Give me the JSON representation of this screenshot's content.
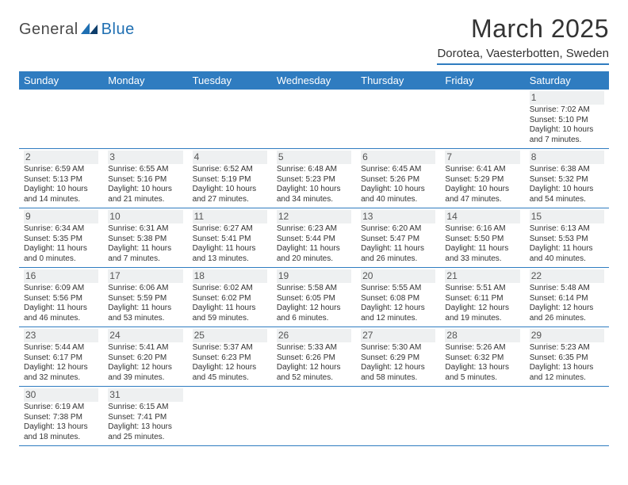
{
  "logo": {
    "part1": "General",
    "part2": "Blue"
  },
  "title": "March 2025",
  "subtitle": "Dorotea, Vaesterbotten, Sweden",
  "colors": {
    "header_bg": "#2f7cc0",
    "header_fg": "#ffffff",
    "border": "#2f7cc0",
    "daynum_bg": "#eef0f1",
    "text": "#333333"
  },
  "weekdays": [
    "Sunday",
    "Monday",
    "Tuesday",
    "Wednesday",
    "Thursday",
    "Friday",
    "Saturday"
  ],
  "cells": [
    {
      "day": "",
      "sunrise": "",
      "sunset": "",
      "daylight": ""
    },
    {
      "day": "",
      "sunrise": "",
      "sunset": "",
      "daylight": ""
    },
    {
      "day": "",
      "sunrise": "",
      "sunset": "",
      "daylight": ""
    },
    {
      "day": "",
      "sunrise": "",
      "sunset": "",
      "daylight": ""
    },
    {
      "day": "",
      "sunrise": "",
      "sunset": "",
      "daylight": ""
    },
    {
      "day": "",
      "sunrise": "",
      "sunset": "",
      "daylight": ""
    },
    {
      "day": "1",
      "sunrise": "Sunrise: 7:02 AM",
      "sunset": "Sunset: 5:10 PM",
      "daylight": "Daylight: 10 hours and 7 minutes."
    },
    {
      "day": "2",
      "sunrise": "Sunrise: 6:59 AM",
      "sunset": "Sunset: 5:13 PM",
      "daylight": "Daylight: 10 hours and 14 minutes."
    },
    {
      "day": "3",
      "sunrise": "Sunrise: 6:55 AM",
      "sunset": "Sunset: 5:16 PM",
      "daylight": "Daylight: 10 hours and 21 minutes."
    },
    {
      "day": "4",
      "sunrise": "Sunrise: 6:52 AM",
      "sunset": "Sunset: 5:19 PM",
      "daylight": "Daylight: 10 hours and 27 minutes."
    },
    {
      "day": "5",
      "sunrise": "Sunrise: 6:48 AM",
      "sunset": "Sunset: 5:23 PM",
      "daylight": "Daylight: 10 hours and 34 minutes."
    },
    {
      "day": "6",
      "sunrise": "Sunrise: 6:45 AM",
      "sunset": "Sunset: 5:26 PM",
      "daylight": "Daylight: 10 hours and 40 minutes."
    },
    {
      "day": "7",
      "sunrise": "Sunrise: 6:41 AM",
      "sunset": "Sunset: 5:29 PM",
      "daylight": "Daylight: 10 hours and 47 minutes."
    },
    {
      "day": "8",
      "sunrise": "Sunrise: 6:38 AM",
      "sunset": "Sunset: 5:32 PM",
      "daylight": "Daylight: 10 hours and 54 minutes."
    },
    {
      "day": "9",
      "sunrise": "Sunrise: 6:34 AM",
      "sunset": "Sunset: 5:35 PM",
      "daylight": "Daylight: 11 hours and 0 minutes."
    },
    {
      "day": "10",
      "sunrise": "Sunrise: 6:31 AM",
      "sunset": "Sunset: 5:38 PM",
      "daylight": "Daylight: 11 hours and 7 minutes."
    },
    {
      "day": "11",
      "sunrise": "Sunrise: 6:27 AM",
      "sunset": "Sunset: 5:41 PM",
      "daylight": "Daylight: 11 hours and 13 minutes."
    },
    {
      "day": "12",
      "sunrise": "Sunrise: 6:23 AM",
      "sunset": "Sunset: 5:44 PM",
      "daylight": "Daylight: 11 hours and 20 minutes."
    },
    {
      "day": "13",
      "sunrise": "Sunrise: 6:20 AM",
      "sunset": "Sunset: 5:47 PM",
      "daylight": "Daylight: 11 hours and 26 minutes."
    },
    {
      "day": "14",
      "sunrise": "Sunrise: 6:16 AM",
      "sunset": "Sunset: 5:50 PM",
      "daylight": "Daylight: 11 hours and 33 minutes."
    },
    {
      "day": "15",
      "sunrise": "Sunrise: 6:13 AM",
      "sunset": "Sunset: 5:53 PM",
      "daylight": "Daylight: 11 hours and 40 minutes."
    },
    {
      "day": "16",
      "sunrise": "Sunrise: 6:09 AM",
      "sunset": "Sunset: 5:56 PM",
      "daylight": "Daylight: 11 hours and 46 minutes."
    },
    {
      "day": "17",
      "sunrise": "Sunrise: 6:06 AM",
      "sunset": "Sunset: 5:59 PM",
      "daylight": "Daylight: 11 hours and 53 minutes."
    },
    {
      "day": "18",
      "sunrise": "Sunrise: 6:02 AM",
      "sunset": "Sunset: 6:02 PM",
      "daylight": "Daylight: 11 hours and 59 minutes."
    },
    {
      "day": "19",
      "sunrise": "Sunrise: 5:58 AM",
      "sunset": "Sunset: 6:05 PM",
      "daylight": "Daylight: 12 hours and 6 minutes."
    },
    {
      "day": "20",
      "sunrise": "Sunrise: 5:55 AM",
      "sunset": "Sunset: 6:08 PM",
      "daylight": "Daylight: 12 hours and 12 minutes."
    },
    {
      "day": "21",
      "sunrise": "Sunrise: 5:51 AM",
      "sunset": "Sunset: 6:11 PM",
      "daylight": "Daylight: 12 hours and 19 minutes."
    },
    {
      "day": "22",
      "sunrise": "Sunrise: 5:48 AM",
      "sunset": "Sunset: 6:14 PM",
      "daylight": "Daylight: 12 hours and 26 minutes."
    },
    {
      "day": "23",
      "sunrise": "Sunrise: 5:44 AM",
      "sunset": "Sunset: 6:17 PM",
      "daylight": "Daylight: 12 hours and 32 minutes."
    },
    {
      "day": "24",
      "sunrise": "Sunrise: 5:41 AM",
      "sunset": "Sunset: 6:20 PM",
      "daylight": "Daylight: 12 hours and 39 minutes."
    },
    {
      "day": "25",
      "sunrise": "Sunrise: 5:37 AM",
      "sunset": "Sunset: 6:23 PM",
      "daylight": "Daylight: 12 hours and 45 minutes."
    },
    {
      "day": "26",
      "sunrise": "Sunrise: 5:33 AM",
      "sunset": "Sunset: 6:26 PM",
      "daylight": "Daylight: 12 hours and 52 minutes."
    },
    {
      "day": "27",
      "sunrise": "Sunrise: 5:30 AM",
      "sunset": "Sunset: 6:29 PM",
      "daylight": "Daylight: 12 hours and 58 minutes."
    },
    {
      "day": "28",
      "sunrise": "Sunrise: 5:26 AM",
      "sunset": "Sunset: 6:32 PM",
      "daylight": "Daylight: 13 hours and 5 minutes."
    },
    {
      "day": "29",
      "sunrise": "Sunrise: 5:23 AM",
      "sunset": "Sunset: 6:35 PM",
      "daylight": "Daylight: 13 hours and 12 minutes."
    },
    {
      "day": "30",
      "sunrise": "Sunrise: 6:19 AM",
      "sunset": "Sunset: 7:38 PM",
      "daylight": "Daylight: 13 hours and 18 minutes."
    },
    {
      "day": "31",
      "sunrise": "Sunrise: 6:15 AM",
      "sunset": "Sunset: 7:41 PM",
      "daylight": "Daylight: 13 hours and 25 minutes."
    },
    {
      "day": "",
      "sunrise": "",
      "sunset": "",
      "daylight": ""
    },
    {
      "day": "",
      "sunrise": "",
      "sunset": "",
      "daylight": ""
    },
    {
      "day": "",
      "sunrise": "",
      "sunset": "",
      "daylight": ""
    },
    {
      "day": "",
      "sunrise": "",
      "sunset": "",
      "daylight": ""
    },
    {
      "day": "",
      "sunrise": "",
      "sunset": "",
      "daylight": ""
    }
  ]
}
